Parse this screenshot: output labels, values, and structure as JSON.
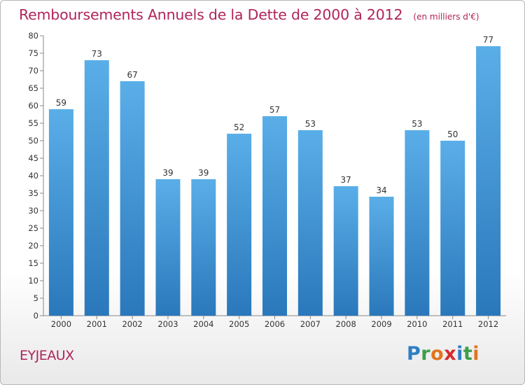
{
  "header": {
    "title": "Remboursements Annuels de la Dette de 2000 à 2012",
    "subtitle": "(en milliers d'€)"
  },
  "footer": {
    "commune": "EYJEAUX",
    "logo": "Proxiti",
    "logo_letters": [
      "P",
      "r",
      "o",
      "x",
      "i",
      "t",
      "i"
    ]
  },
  "colors": {
    "bar_top": "#5aaee8",
    "bar_bottom": "#2a78bb",
    "title": "#b0245a"
  },
  "chart_data": {
    "type": "bar",
    "title": "Remboursements Annuels de la Dette de 2000 à 2012",
    "subtitle": "(en milliers d'€)",
    "categories": [
      "2000",
      "2001",
      "2002",
      "2003",
      "2004",
      "2005",
      "2006",
      "2007",
      "2008",
      "2009",
      "2010",
      "2011",
      "2012"
    ],
    "values": [
      59,
      73,
      67,
      39,
      39,
      52,
      57,
      53,
      37,
      34,
      53,
      50,
      77
    ],
    "ylim": [
      0,
      80
    ],
    "yticks": [
      0,
      5,
      10,
      15,
      20,
      25,
      30,
      35,
      40,
      45,
      50,
      55,
      60,
      65,
      70,
      75,
      80
    ],
    "grid": false,
    "data_labels": true
  }
}
